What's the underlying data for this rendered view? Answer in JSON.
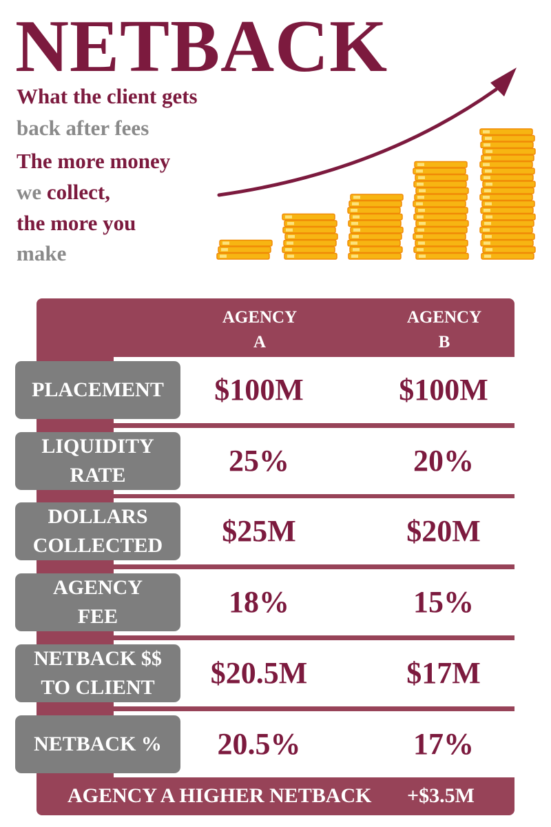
{
  "title": "NETBACK",
  "tagline": [
    {
      "text": "What the client gets",
      "color": "maroon"
    },
    {
      "text": "back after fees",
      "color": "grey"
    },
    {
      "text": "The more money",
      "color": "maroon"
    },
    {
      "text_a": "we ",
      "text_b": "collect,",
      "color": "mixed"
    },
    {
      "text": "the more you",
      "color": "maroon"
    },
    {
      "text": "make",
      "color": "grey"
    }
  ],
  "colors": {
    "brand": "#7c1a3e",
    "table": "#974358",
    "label_bg": "#7e7e7e",
    "coin": "#f7b512",
    "coin_edge": "#f08a07"
  },
  "illustration": {
    "icons": [
      "rising-arrow-icon",
      "coin-stack-icon"
    ],
    "coin_stack_levels": [
      1,
      2,
      3,
      4,
      5
    ]
  },
  "table": {
    "columns": [
      {
        "line1": "AGENCY",
        "line2": "A"
      },
      {
        "line1": "AGENCY",
        "line2": "B"
      }
    ],
    "rows": [
      {
        "label": [
          "PLACEMENT"
        ],
        "a": "$100M",
        "b": "$100M"
      },
      {
        "label": [
          "LIQUIDITY",
          "RATE"
        ],
        "a": "25%",
        "b": "20%"
      },
      {
        "label": [
          "DOLLARS",
          "COLLECTED"
        ],
        "a": "$25M",
        "b": "$20M"
      },
      {
        "label": [
          "AGENCY",
          "FEE"
        ],
        "a": "18%",
        "b": "15%"
      },
      {
        "label": [
          "NETBACK $$",
          "TO CLIENT"
        ],
        "a": "$20.5M",
        "b": "$17M"
      },
      {
        "label": [
          "NETBACK %"
        ],
        "a": "20.5%",
        "b": "17%"
      }
    ],
    "footer": {
      "label": "AGENCY A HIGHER NETBACK",
      "value": "+$3.5M"
    }
  }
}
